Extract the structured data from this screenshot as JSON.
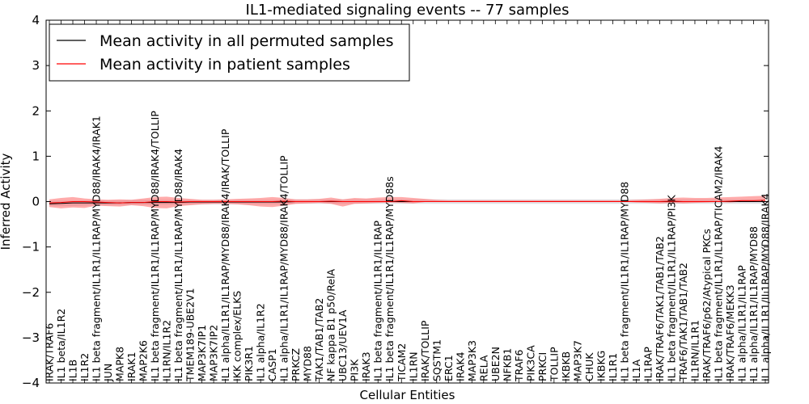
{
  "chart_data": {
    "type": "line",
    "title": "IL1-mediated signaling events -- 77 samples",
    "xlabel": "Cellular Entities",
    "ylabel": "Inferred Activity",
    "ylim": [
      -4,
      4
    ],
    "yticks": [
      -4,
      -3,
      -2,
      -1,
      0,
      1,
      2,
      3,
      4
    ],
    "grid": false,
    "legend": {
      "location": "top-left",
      "entries": [
        {
          "label": "Mean activity in all permuted samples",
          "color": "#000000"
        },
        {
          "label": "Mean activity in patient samples",
          "color": "#ff0000"
        }
      ]
    },
    "categories": [
      "IRAK/TRAF6",
      "IL1 beta/IL1R2",
      "IL1B",
      "IL1R2",
      "IL1 beta fragment/IL1R1/IL1RAP/MYD88/IRAK4/IRAK1",
      "JUN",
      "MAPK8",
      "IRAK1",
      "MAP2K6",
      "IL1 beta fragment/IL1R1/IL1RAP/MYD88/IRAK4/TOLLIP",
      "IL1RN/IL1R2",
      "IL1 beta fragment/IL1R1/IL1RAP/MYD88/IRAK4",
      "TMEM189-UBE2V1",
      "MAP3K7IP1",
      "MAP3K7IP2",
      "IL1 alpha/IL1R1/IL1RAP/MYD88/IRAK4/IRAK/TOLLIP",
      "IKK complex/ELKS",
      "PIK3R1",
      "IL1 alpha/IL1R2",
      "CASP1",
      "IL1 alpha/IL1R1/IL1RAP/MYD88/IRAK4/TOLLIP",
      "PRKCZ",
      "MYD88",
      "TAK1/TAB1/TAB2",
      "NF kappa B1 p50/RelA",
      "UBC13/UEV1A",
      "PI3K",
      "IRAK3",
      "IL1 beta fragment/IL1R1/IL1RAP",
      "IL1 beta fragment/IL1R1/IL1RAP/MYD88s",
      "TICAM2",
      "IL1RN",
      "IRAK/TOLLIP",
      "SQSTM1",
      "ERC1",
      "IRAK4",
      "MAP3K3",
      "RELA",
      "UBE2N",
      "NFKB1",
      "TRAF6",
      "PIK3CA",
      "PRKCI",
      "TOLLIP",
      "IKBKB",
      "MAP3K7",
      "CHUK",
      "IKBKG",
      "IL1R1",
      "IL1 beta fragment/IL1R1/IL1RAP/MYD88",
      "IL1A",
      "IL1RAP",
      "IRAK/TRAF6/TAK1/TAB1/TAB2",
      "IL1 beta fragment/IL1R1/IL1RAP/PI3K",
      "TRAF6/TAK1/TAB1/TAB2",
      "IL1RN/IL1R1",
      "IRAK/TRAF6/p62/Atypical PKCs",
      "IL1 beta fragment/IL1R1/IL1RAP/TICAM2/IRAK4",
      "IRAK/TRAF6/MEKK3",
      "IL1 alpha/IL1R1/IL1RAP",
      "IL1 alpha/IL1R1/IL1RAP/MYD88",
      "IL1 alpha/IL1R1/IL1RAP/MYD88/IRAK4"
    ],
    "series": [
      {
        "name": "Mean activity in all permuted samples",
        "color": "#000000",
        "values": [
          -0.05,
          -0.04,
          -0.03,
          -0.03,
          -0.03,
          -0.03,
          -0.03,
          -0.02,
          -0.02,
          -0.02,
          -0.02,
          -0.02,
          -0.01,
          -0.01,
          -0.01,
          -0.01,
          -0.01,
          -0.01,
          -0.01,
          -0.01,
          -0.01,
          0,
          0,
          0,
          0,
          0,
          0,
          0,
          0,
          0,
          0,
          0,
          0,
          0,
          0,
          0,
          0,
          0,
          0,
          0,
          0,
          0,
          0,
          0,
          0,
          0,
          0,
          0,
          0,
          0,
          0,
          0,
          0,
          0,
          0,
          0,
          0,
          0,
          0,
          0,
          0,
          0
        ],
        "band_low": [
          -0.1,
          -0.1,
          -0.1,
          -0.09,
          -0.08,
          -0.08,
          -0.08,
          -0.07,
          -0.07,
          -0.07,
          -0.07,
          -0.07,
          -0.06,
          -0.06,
          -0.06,
          -0.06,
          -0.06,
          -0.06,
          -0.06,
          -0.06,
          -0.06,
          -0.05,
          -0.05,
          -0.05,
          -0.05,
          -0.05,
          -0.05,
          -0.05,
          -0.05,
          -0.05,
          -0.05,
          -0.05,
          -0.05,
          -0.05,
          -0.05,
          -0.05,
          -0.05,
          -0.05,
          -0.05,
          -0.05,
          -0.05,
          -0.05,
          -0.05,
          -0.05,
          -0.05,
          -0.05,
          -0.05,
          -0.05,
          -0.05,
          -0.05,
          -0.05,
          -0.05,
          -0.05,
          -0.05,
          -0.05,
          -0.05,
          -0.05,
          -0.05,
          -0.05,
          -0.05,
          -0.05,
          -0.05
        ],
        "band_high": [
          0.02,
          0.02,
          0.02,
          0.03,
          0.03,
          0.03,
          0.03,
          0.04,
          0.04,
          0.04,
          0.04,
          0.04,
          0.04,
          0.04,
          0.04,
          0.04,
          0.04,
          0.04,
          0.04,
          0.04,
          0.04,
          0.05,
          0.05,
          0.05,
          0.05,
          0.05,
          0.05,
          0.05,
          0.05,
          0.05,
          0.05,
          0.05,
          0.05,
          0.05,
          0.05,
          0.05,
          0.05,
          0.05,
          0.05,
          0.05,
          0.05,
          0.05,
          0.05,
          0.05,
          0.05,
          0.05,
          0.05,
          0.05,
          0.05,
          0.05,
          0.05,
          0.05,
          0.05,
          0.05,
          0.05,
          0.05,
          0.05,
          0.05,
          0.05,
          0.05,
          0.05,
          0.05
        ]
      },
      {
        "name": "Mean activity in patient samples",
        "color": "#ff0000",
        "values": [
          -0.03,
          -0.02,
          0,
          0,
          -0.01,
          -0.02,
          -0.03,
          -0.02,
          -0.02,
          0,
          0,
          -0.01,
          0,
          0,
          0,
          0,
          0,
          0,
          0,
          0,
          0.01,
          0,
          0,
          0,
          0.01,
          0,
          0,
          0,
          0,
          0,
          0.02,
          0,
          0,
          0,
          0,
          0,
          0,
          0,
          0,
          0,
          0,
          0,
          0,
          0,
          0,
          0,
          0,
          0,
          0,
          0,
          0,
          0,
          0,
          0.01,
          0,
          0,
          0,
          0,
          0.01,
          0.02,
          0.02,
          0.03
        ],
        "band_low": [
          -0.12,
          -0.15,
          -0.13,
          -0.14,
          -0.09,
          -0.1,
          -0.11,
          -0.08,
          -0.1,
          -0.14,
          -0.15,
          -0.1,
          -0.08,
          -0.06,
          -0.05,
          -0.05,
          -0.06,
          -0.08,
          -0.11,
          -0.12,
          -0.09,
          -0.05,
          -0.04,
          -0.03,
          -0.05,
          -0.11,
          -0.05,
          -0.04,
          -0.03,
          -0.02,
          -0.03,
          -0.04,
          -0.01,
          0,
          0,
          0,
          0,
          0,
          0,
          0,
          0,
          0,
          0,
          0,
          0,
          0,
          0,
          0,
          0,
          0,
          -0.02,
          -0.03,
          -0.04,
          -0.03,
          -0.04,
          -0.03,
          -0.02,
          -0.01,
          -0.02,
          0,
          0,
          0
        ],
        "band_high": [
          0.05,
          0.08,
          0.1,
          0.07,
          0.05,
          0.04,
          0.05,
          0.04,
          0.07,
          0.1,
          0.11,
          0.08,
          0.06,
          0.04,
          0.04,
          0.05,
          0.06,
          0.07,
          0.08,
          0.1,
          0.08,
          0.05,
          0.05,
          0.06,
          0.09,
          0.05,
          0.08,
          0.07,
          0.09,
          0.1,
          0.1,
          0.08,
          0.06,
          0.04,
          0.03,
          0.03,
          0.03,
          0.03,
          0.03,
          0.03,
          0.03,
          0.03,
          0.03,
          0.03,
          0.03,
          0.03,
          0.03,
          0.03,
          0.03,
          0.03,
          0.04,
          0.05,
          0.06,
          0.08,
          0.09,
          0.08,
          0.08,
          0.09,
          0.1,
          0.11,
          0.12,
          0.13
        ]
      }
    ]
  }
}
